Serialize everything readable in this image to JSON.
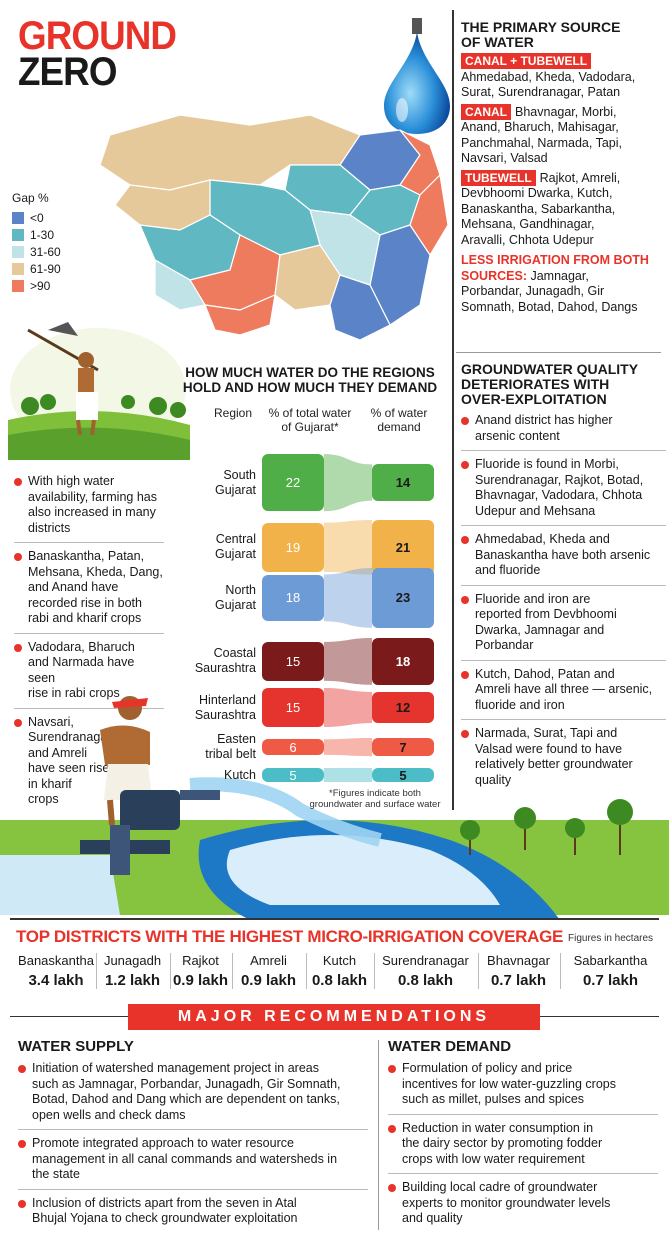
{
  "header": {
    "title_line1": "GROUND",
    "title_line2": "ZERO"
  },
  "legend": {
    "title": "Gap %",
    "items": [
      {
        "label": "<0",
        "color": "#5b84c8"
      },
      {
        "label": "1-30",
        "color": "#5fb8c2"
      },
      {
        "label": "31-60",
        "color": "#bfe3e6"
      },
      {
        "label": "61-90",
        "color": "#e6c99a"
      },
      {
        "label": ">90",
        "color": "#ee7b5e"
      }
    ]
  },
  "primary_source": {
    "heading_1": "THE PRIMARY SOURCE",
    "heading_2": "OF WATER",
    "groups": [
      {
        "tag": "CANAL + TUBEWELL",
        "lines": [
          "Ahmedabad, Kheda, Vadodara,",
          "Surat, Surendranagar, Patan"
        ]
      },
      {
        "tag": "CANAL",
        "lines": [
          "Bhavnagar, Morbi,",
          "Anand, Bharuch, Mahisagar,",
          "Panchmahal, Narmada, Tapi,",
          "Navsari, Valsad"
        ]
      },
      {
        "tag": "TUBEWELL",
        "lines": [
          "Rajkot, Amreli,",
          "Devbhoomi Dwarka, Kutch,",
          "Banaskantha, Sabarkantha,",
          "Mehsana, Gandhinagar,",
          "Aravalli, Chhota Udepur"
        ]
      }
    ],
    "less_irrigation_1": "LESS IRRIGATION FROM BOTH",
    "less_irrigation_2": "SOURCES:",
    "less_lines": [
      " Jamnagar,",
      "Porbandar, Junagadh, Gir",
      "Somnath, Botad, Dahod, Dangs"
    ]
  },
  "quality": {
    "heading": [
      "GROUNDWATER QUALITY",
      "DETERIORATES WITH",
      "OVER-EXPLOITATION"
    ],
    "items": [
      [
        "Anand district has higher",
        "arsenic content"
      ],
      [
        "Fluoride is found in Morbi,",
        "Surendranagar, Rajkot, Botad,",
        "Bhavnagar, Vadodara, Chhota",
        "Udepur and Mehsana"
      ],
      [
        "Ahmedabad, Kheda and",
        "Banaskantha have both arsenic",
        "and fluoride"
      ],
      [
        "Fluoride and iron are",
        "reported from Devbhoomi",
        "Dwarka, Jamnagar and",
        "Porbandar"
      ],
      [
        "Kutch, Dahod, Patan and",
        "Amreli have all three — arsenic,",
        "fluoride and iron"
      ],
      [
        "Narmada, Surat, Tapi and",
        "Valsad were found to have",
        "relatively better groundwater",
        "quality"
      ]
    ]
  },
  "left_notes": [
    [
      "With high water",
      "availability, farming has",
      "also increased in many",
      "districts"
    ],
    [
      "Banaskantha, Patan,",
      "Mehsana, Kheda, Dang,",
      "and Anand have",
      "recorded rise in both",
      "rabi and kharif crops"
    ],
    [
      "Vadodara, Bharuch",
      "and Narmada have seen",
      "rise in rabi crops"
    ],
    [
      "Navsari,",
      "Surendranagar",
      "and Amreli",
      "have seen rise",
      "in kharif",
      "crops"
    ]
  ],
  "chart_data": {
    "type": "bar",
    "title": [
      "HOW MUCH WATER DO THE REGIONS",
      "HOLD AND HOW MUCH THEY DEMAND"
    ],
    "col_region": "Region",
    "col_total": [
      "% of total water",
      "of Gujarat*"
    ],
    "col_demand": [
      "% of water",
      "demand"
    ],
    "categories": [
      "South Gujarat",
      "Central Gujarat",
      "North Gujarat",
      "Coastal Saurashtra",
      "Hinterland Saurashtra",
      "Eastern tribal belt",
      "Kutch"
    ],
    "category_lines": [
      [
        "South",
        "Gujarat"
      ],
      [
        "Central",
        "Gujarat"
      ],
      [
        "North",
        "Gujarat"
      ],
      [
        "Coastal",
        "Saurashtra"
      ],
      [
        "Hinterland",
        "Saurashtra"
      ],
      [
        "Easten",
        "tribal belt"
      ],
      [
        "Kutch"
      ]
    ],
    "series": [
      {
        "name": "% of total water of Gujarat*",
        "values": [
          22,
          19,
          18,
          15,
          15,
          6,
          5
        ]
      },
      {
        "name": "% of water demand",
        "values": [
          14,
          21,
          23,
          18,
          12,
          7,
          5
        ]
      }
    ],
    "colors": [
      "#4fae48",
      "#f2b24a",
      "#6d9bd6",
      "#7a1a1a",
      "#e5342e",
      "#ee5a44",
      "#4cbcc6"
    ],
    "footnote": [
      "*Figures indicate both",
      "groundwater and surface water"
    ]
  },
  "micro_irrigation": {
    "title": "TOP DISTRICTS WITH THE HIGHEST MICRO-IRRIGATION COVERAGE",
    "unit_note": "Figures in hectares",
    "districts": [
      {
        "name": "Banaskantha",
        "value": "3.4 lakh"
      },
      {
        "name": "Junagadh",
        "value": "1.2 lakh"
      },
      {
        "name": "Rajkot",
        "value": "0.9 lakh"
      },
      {
        "name": "Amreli",
        "value": "0.9 lakh"
      },
      {
        "name": "Kutch",
        "value": "0.8 lakh"
      },
      {
        "name": "Surendranagar",
        "value": "0.8 lakh"
      },
      {
        "name": "Bhavnagar",
        "value": "0.7 lakh"
      },
      {
        "name": "Sabarkantha",
        "value": "0.7 lakh"
      }
    ]
  },
  "recommendations": {
    "banner": "MAJOR RECOMMENDATIONS",
    "supply_title": "WATER SUPPLY",
    "supply": [
      [
        "Initiation of watershed management project in areas",
        "such as Jamnagar, Porbandar, Junagadh, Gir Somnath,",
        "Botad, Dahod and Dang which are dependent on tanks,",
        "open wells and check dams"
      ],
      [
        "Promote integrated approach to water resource",
        "management in all canal commands and watersheds in",
        "the state"
      ],
      [
        "Inclusion of districts apart from the seven in Atal",
        "Bhujal Yojana to check groundwater exploitation"
      ]
    ],
    "demand_title": "WATER DEMAND",
    "demand": [
      [
        "Formulation of policy and price",
        "incentives for low water-guzzling crops",
        "such as millet, pulses and spices"
      ],
      [
        "Reduction in water consumption in",
        "the dairy sector by promoting fodder",
        "crops with low water requirement"
      ],
      [
        "Building local cadre of groundwater",
        "experts to monitor groundwater levels",
        "and quality"
      ]
    ]
  }
}
